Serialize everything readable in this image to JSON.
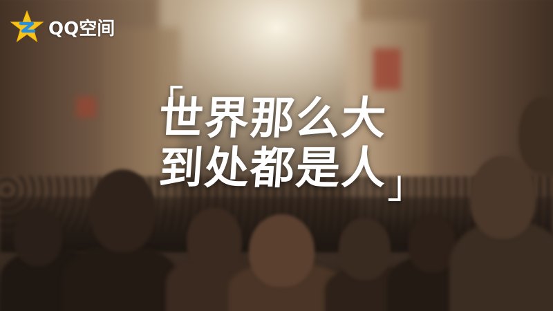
{
  "logo": {
    "text": "QQ空间",
    "icon": "qzone-star-icon",
    "star_color": "#f7c21a",
    "mark_color": "#2a8fdb"
  },
  "headline": {
    "open_bracket": "「",
    "line1": "世界那么大",
    "line2": "到处都是人",
    "close_bracket": "」"
  }
}
